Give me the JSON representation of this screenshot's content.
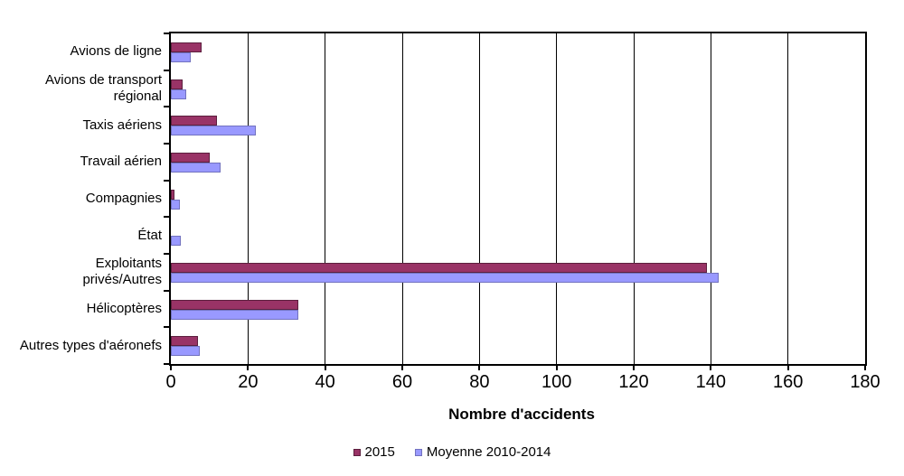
{
  "chart_data": {
    "type": "bar",
    "orientation": "horizontal",
    "title": "",
    "xlabel": "Nombre d'accidents",
    "xlim": [
      0,
      180
    ],
    "xticks": [
      0,
      20,
      40,
      60,
      80,
      100,
      120,
      140,
      160,
      180
    ],
    "grid": "vertical-gridlines-at-each-xtick",
    "legend_position": "bottom-center",
    "categories": [
      "Avions de ligne",
      "Avions de transport\nrégional",
      "Taxis aériens",
      "Travail aérien",
      "Compagnies",
      "État",
      "Exploitants\nprivés/Autres",
      "Hélicoptères",
      "Autres types d'aéronefs"
    ],
    "series": [
      {
        "name": "2015",
        "color": "#993366",
        "border_color": "#5c1f3e",
        "values": [
          8,
          3,
          12,
          10,
          1,
          0,
          139,
          33,
          7
        ]
      },
      {
        "name": "Moyenne 2010-2014",
        "color": "#9999FF",
        "border_color": "#7272BF",
        "values": [
          5.2,
          4,
          22,
          13,
          2.4,
          2.6,
          142,
          33,
          7.4
        ]
      }
    ],
    "colors": {
      "axis": "#000000",
      "grid": "#000000",
      "text": "#000000",
      "background": "#FFFFFF"
    }
  }
}
